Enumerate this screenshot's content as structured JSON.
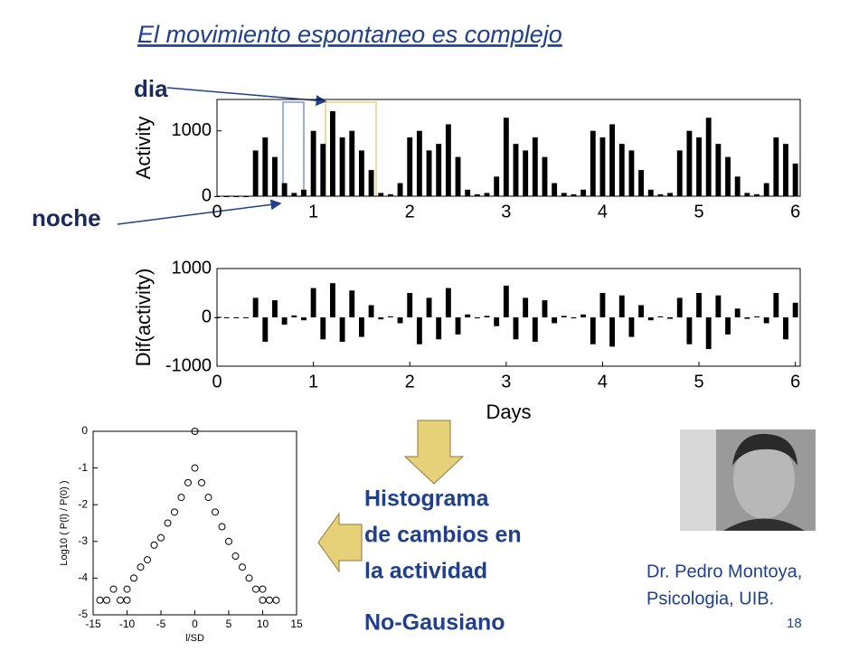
{
  "title": "El movimiento espontaneo es complejo",
  "labels": {
    "day": "dia",
    "night": "noche"
  },
  "chart_data": [
    {
      "type": "bar",
      "ylabel": "Activity",
      "color": "#000000",
      "x": [
        0,
        0.1,
        0.2,
        0.3,
        0.4,
        0.5,
        0.6,
        0.7,
        0.8,
        0.9,
        1,
        1.1,
        1.2,
        1.3,
        1.4,
        1.5,
        1.6,
        1.7,
        1.8,
        1.9,
        2,
        2.1,
        2.2,
        2.3,
        2.4,
        2.5,
        2.6,
        2.7,
        2.8,
        2.9,
        3,
        3.1,
        3.2,
        3.3,
        3.4,
        3.5,
        3.6,
        3.7,
        3.8,
        3.9,
        4,
        4.1,
        4.2,
        4.3,
        4.4,
        4.5,
        4.6,
        4.7,
        4.8,
        4.9,
        5,
        5.1,
        5.2,
        5.3,
        5.4,
        5.5,
        5.6,
        5.7,
        5.8,
        5.9,
        6
      ],
      "values": [
        0,
        0,
        0,
        0,
        700,
        900,
        600,
        200,
        50,
        100,
        1000,
        800,
        1300,
        900,
        1000,
        700,
        400,
        50,
        30,
        200,
        900,
        1000,
        700,
        800,
        1100,
        600,
        100,
        30,
        50,
        300,
        1200,
        800,
        700,
        900,
        600,
        200,
        50,
        30,
        100,
        1000,
        900,
        1100,
        800,
        700,
        400,
        100,
        30,
        50,
        700,
        1000,
        900,
        1200,
        800,
        600,
        300,
        50,
        30,
        200,
        900,
        800,
        500
      ],
      "xlim": [
        0,
        6.05
      ],
      "xticks": [
        0,
        1,
        2,
        3,
        4,
        5,
        6
      ],
      "ylim": [
        0,
        1480
      ],
      "yticks": [
        0,
        1000
      ]
    },
    {
      "type": "bar",
      "ylabel": "Dif(activity)",
      "xlabel": "Days",
      "color": "#000000",
      "x": [
        0,
        0.1,
        0.2,
        0.3,
        0.4,
        0.5,
        0.6,
        0.7,
        0.8,
        0.9,
        1,
        1.1,
        1.2,
        1.3,
        1.4,
        1.5,
        1.6,
        1.7,
        1.8,
        1.9,
        2,
        2.1,
        2.2,
        2.3,
        2.4,
        2.5,
        2.6,
        2.7,
        2.8,
        2.9,
        3,
        3.1,
        3.2,
        3.3,
        3.4,
        3.5,
        3.6,
        3.7,
        3.8,
        3.9,
        4,
        4.1,
        4.2,
        4.3,
        4.4,
        4.5,
        4.6,
        4.7,
        4.8,
        4.9,
        5,
        5.1,
        5.2,
        5.3,
        5.4,
        5.5,
        5.6,
        5.7,
        5.8,
        5.9,
        6
      ],
      "values": [
        0,
        0,
        0,
        0,
        400,
        -500,
        350,
        -150,
        40,
        -60,
        600,
        -450,
        700,
        -500,
        550,
        -400,
        250,
        -40,
        20,
        -120,
        500,
        -550,
        400,
        -450,
        600,
        -350,
        60,
        -20,
        30,
        -180,
        650,
        -450,
        400,
        -500,
        350,
        -120,
        30,
        -20,
        60,
        -550,
        500,
        -600,
        450,
        -400,
        250,
        -60,
        20,
        -30,
        400,
        -550,
        500,
        -650,
        450,
        -350,
        180,
        -30,
        20,
        -120,
        500,
        -450,
        300
      ],
      "xlim": [
        0,
        6.05
      ],
      "xticks": [
        0,
        1,
        2,
        3,
        4,
        5,
        6
      ],
      "ylim": [
        -1000,
        1000
      ],
      "yticks": [
        -1000,
        0,
        1000
      ]
    },
    {
      "type": "scatter",
      "xlabel": "l/SD",
      "ylabel": "Log10 ( P(l) / P(0) )",
      "color": "#000000",
      "x": [
        -14,
        -13,
        -12,
        -11,
        -10,
        -10,
        -9,
        -8,
        -7,
        -6,
        -5,
        -4,
        -3,
        -2,
        -1,
        0,
        0,
        1,
        2,
        3,
        4,
        5,
        6,
        7,
        8,
        9,
        10,
        10,
        11,
        12
      ],
      "values": [
        -4.6,
        -4.6,
        -4.3,
        -4.6,
        -4.6,
        -4.3,
        -4.0,
        -3.7,
        -3.5,
        -3.1,
        -2.9,
        -2.5,
        -2.2,
        -1.8,
        -1.4,
        -1.0,
        0,
        -1.4,
        -1.8,
        -2.2,
        -2.6,
        -3.0,
        -3.4,
        -3.7,
        -4.0,
        -4.3,
        -4.6,
        -4.3,
        -4.6,
        -4.6
      ],
      "xlim": [
        -15,
        15
      ],
      "xticks": [
        -15,
        -10,
        -5,
        0,
        5,
        10,
        15
      ],
      "ylim": [
        -5,
        0
      ],
      "yticks": [
        -5,
        -4,
        -3,
        -2,
        -1,
        0
      ]
    }
  ],
  "caption": [
    "Histograma",
    "de cambios en",
    "la actividad"
  ],
  "conclusion": "No-Gausiano",
  "credit": [
    "Dr. Pedro Montoya,",
    "Psicologia, UIB."
  ],
  "page_number": "18"
}
